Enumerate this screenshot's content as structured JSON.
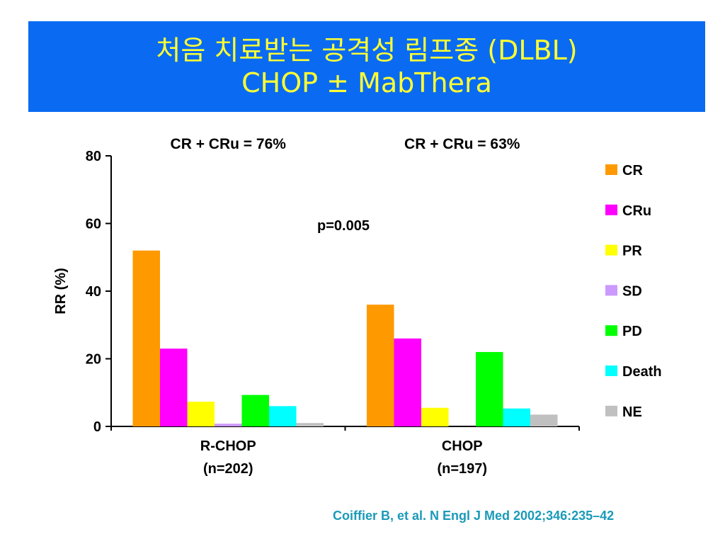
{
  "slide": {
    "title_line1": "처음 치료받는 공격성 림프종 (DLBL)",
    "title_line2": "CHOP ± MabThera",
    "citation": "Coiffier B, et al. N Engl J Med 2002;346:235–42",
    "banner_color": "#0a6bf2",
    "title_color": "#ffff33"
  },
  "chart_data": {
    "type": "bar",
    "title": "",
    "xlabel": "",
    "ylabel": "RR (%)",
    "ylim": [
      0,
      80
    ],
    "yticks": [
      "0",
      "20",
      "40",
      "60",
      "80"
    ],
    "categories": [
      "R-CHOP",
      "CHOP"
    ],
    "category_sublabels": [
      "(n=202)",
      "(n=197)"
    ],
    "group_annotations": [
      "CR + CRu = 76%",
      "CR + CRu = 63%"
    ],
    "annotation": "p=0.005",
    "legend_position": "right",
    "grid": false,
    "series": [
      {
        "name": "CR",
        "color": "#ff9900",
        "values": [
          52,
          36
        ]
      },
      {
        "name": "CRu",
        "color": "#ff00ff",
        "values": [
          23,
          26
        ]
      },
      {
        "name": "PR",
        "color": "#ffff00",
        "values": [
          7.3,
          5.5
        ]
      },
      {
        "name": "SD",
        "color": "#cc99ff",
        "values": [
          0.8,
          0
        ]
      },
      {
        "name": "PD",
        "color": "#00ff00",
        "values": [
          9.3,
          22
        ]
      },
      {
        "name": "Death",
        "color": "#00ffff",
        "values": [
          6,
          5.3
        ]
      },
      {
        "name": "NE",
        "color": "#c0c0c0",
        "values": [
          1,
          3.5
        ]
      }
    ]
  }
}
